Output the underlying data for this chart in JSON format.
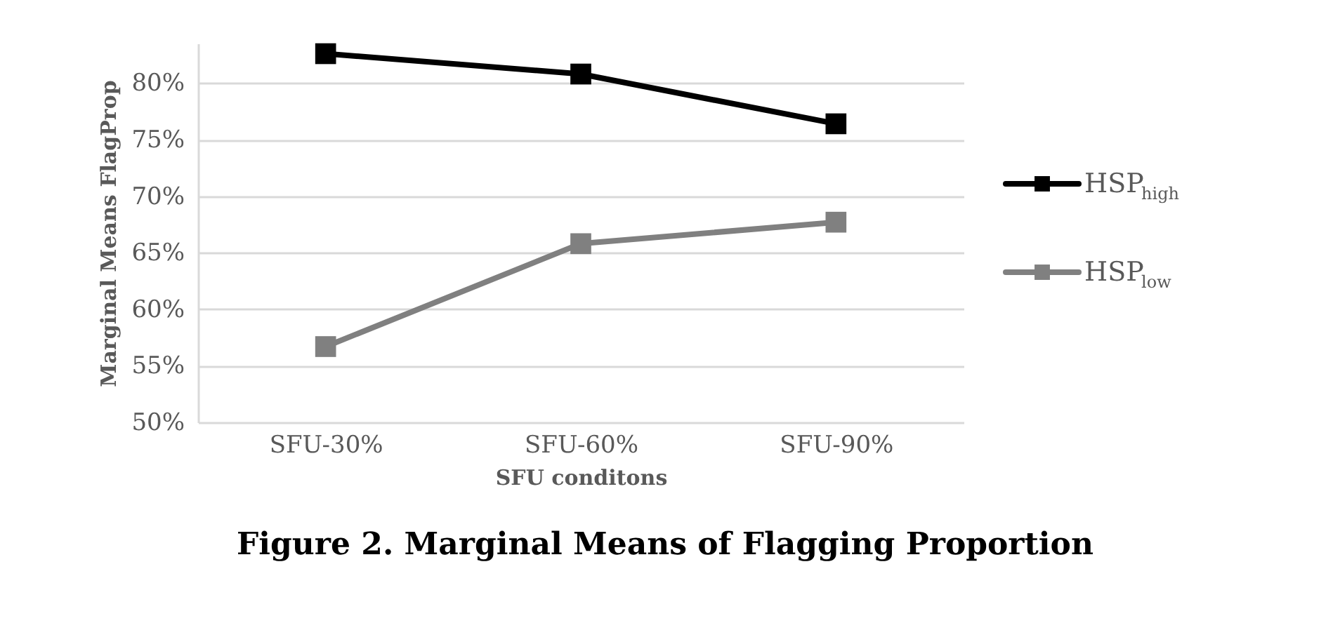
{
  "chart_data": {
    "type": "line",
    "title": "Figure 2. Marginal Means of Flagging Proportion",
    "xlabel": "SFU conditons",
    "ylabel": "Marginal Means FlagProp",
    "categories": [
      "SFU-30%",
      "SFU-60%",
      "SFU-90%"
    ],
    "series": [
      {
        "name": "HSP$_{high}$",
        "color": "#000000",
        "values": [
          82.6,
          80.8,
          76.4
        ]
      },
      {
        "name": "HSP$_{low}$",
        "color": "#808080",
        "values": [
          56.7,
          65.8,
          67.7
        ]
      }
    ],
    "ylim": [
      50,
      83.5
    ],
    "yticks": [
      {
        "value": 50,
        "label": "50%"
      },
      {
        "value": 55,
        "label": "55%"
      },
      {
        "value": 60,
        "label": "60%"
      },
      {
        "value": 65,
        "label": "65%"
      },
      {
        "value": 70,
        "label": "70%"
      },
      {
        "value": 75,
        "label": "75%"
      },
      {
        "value": 80,
        "label": "80%"
      }
    ],
    "grid": "y",
    "legend": "right",
    "marker": "square",
    "line_style": "solid"
  }
}
